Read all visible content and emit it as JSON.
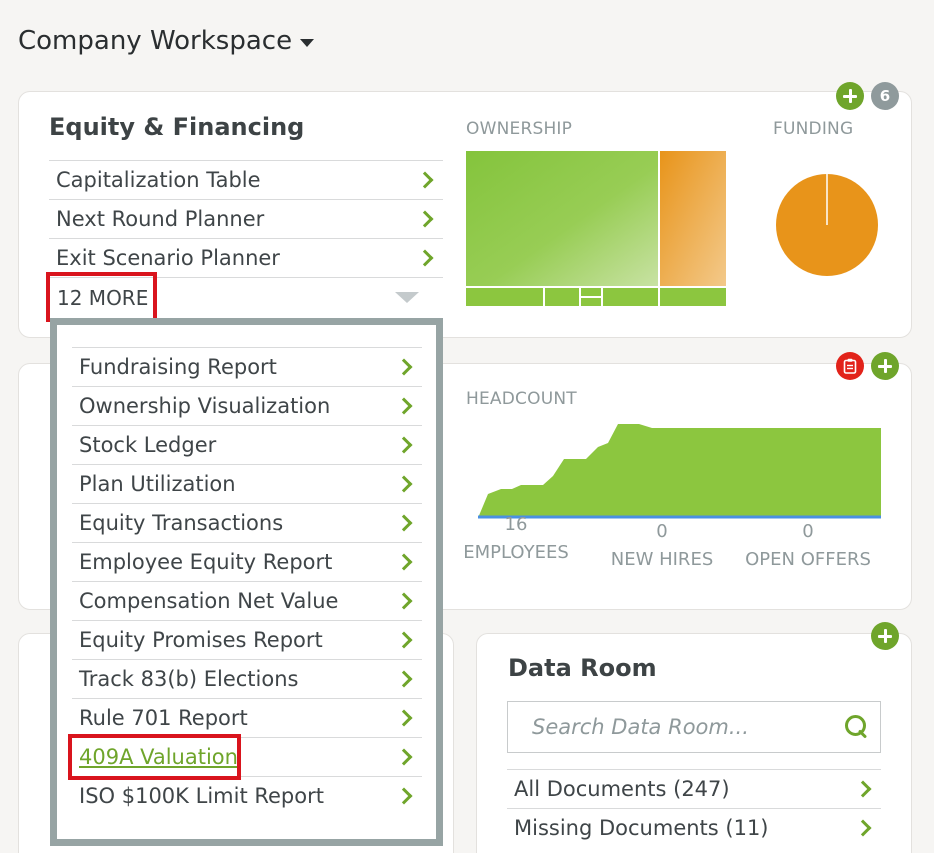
{
  "workspace": {
    "title": "Company Workspace"
  },
  "equity_card": {
    "title": "Equity & Financing",
    "badge_count": "6",
    "links": [
      {
        "label": "Capitalization Table"
      },
      {
        "label": "Next Round Planner"
      },
      {
        "label": "Exit Scenario Planner"
      }
    ],
    "more_label": "12 MORE",
    "ownership_label": "OWNERSHIP",
    "funding_label": "FUNDING",
    "colors": {
      "green": "#8cc63f",
      "orange": "#e8941a"
    }
  },
  "dropdown": {
    "items": [
      {
        "label": "Fundraising Report"
      },
      {
        "label": "Ownership Visualization"
      },
      {
        "label": "Stock Ledger"
      },
      {
        "label": "Plan Utilization"
      },
      {
        "label": "Equity Transactions"
      },
      {
        "label": "Employee Equity Report"
      },
      {
        "label": "Compensation Net Value"
      },
      {
        "label": "Equity Promises Report"
      },
      {
        "label": "Track 83(b) Elections"
      },
      {
        "label": "Rule 701 Report"
      },
      {
        "label": "409A Valuation"
      },
      {
        "label": "ISO $100K Limit Report"
      }
    ]
  },
  "people_card": {
    "headcount_label": "HEADCOUNT",
    "stats": [
      {
        "value": "16",
        "label": "EMPLOYEES"
      },
      {
        "value": "0",
        "label": "NEW HIRES"
      },
      {
        "value": "0",
        "label": "OPEN OFFERS"
      }
    ]
  },
  "data_room": {
    "title": "Data Room",
    "search_placeholder": "Search Data Room...",
    "links": [
      {
        "label": "All Documents (247)"
      },
      {
        "label": "Missing Documents (11)"
      }
    ]
  }
}
